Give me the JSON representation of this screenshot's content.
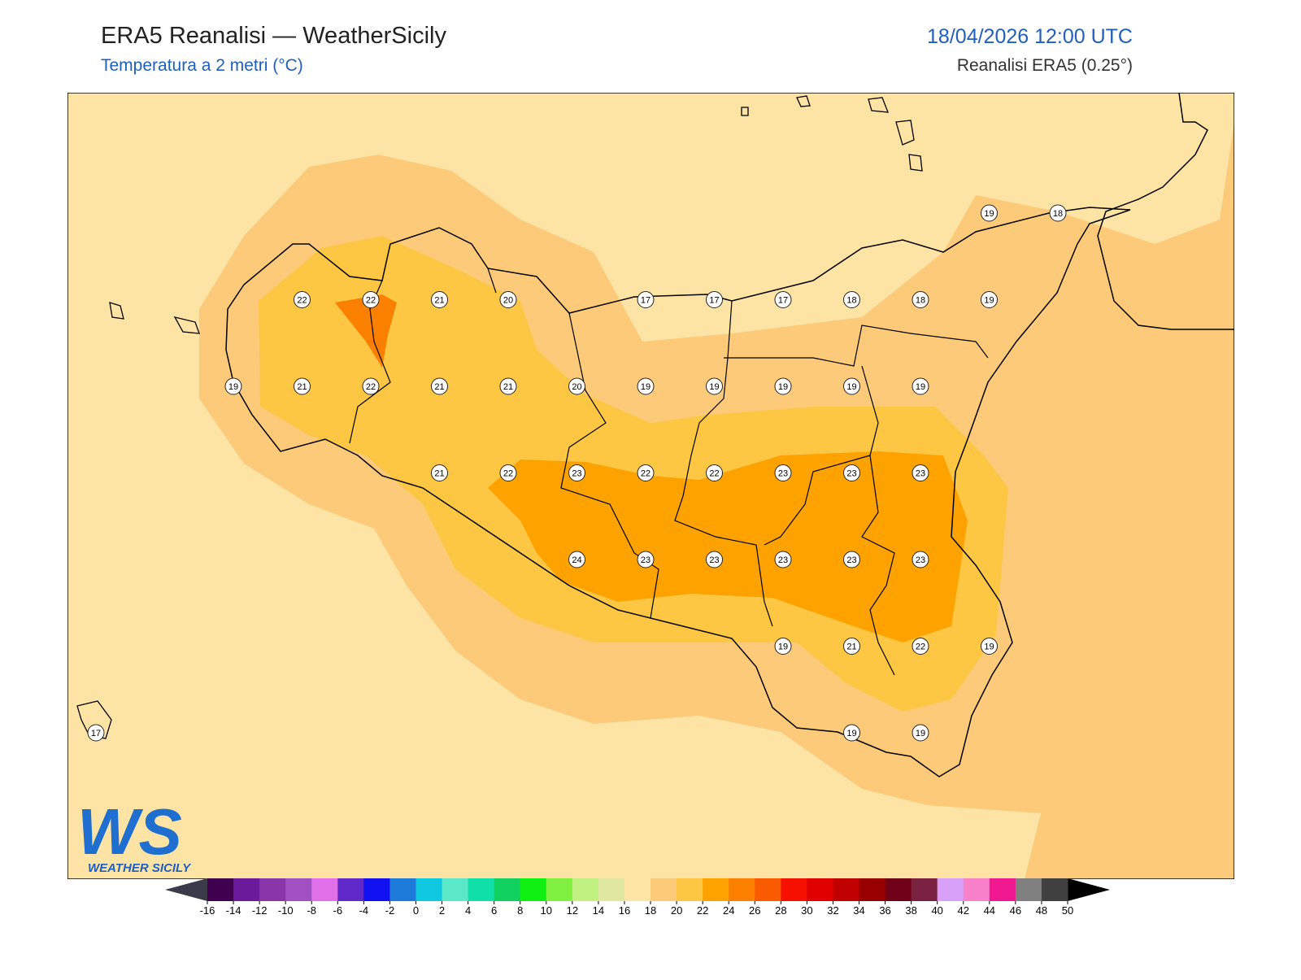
{
  "header": {
    "title": "ERA5 Reanalisi — WeatherSicily",
    "subtitle": "Temperatura a 2 metri (°C)",
    "datetime": "18/04/2026 12:00 UTC",
    "source": "Reanalisi ERA5 (0.25°)"
  },
  "logo": {
    "mark": "WS",
    "name": "WEATHER SICILY"
  },
  "points": [
    19,
    18,
    22,
    22,
    21,
    20,
    17,
    17,
    17,
    18,
    18,
    19,
    19,
    21,
    22,
    21,
    21,
    20,
    19,
    19,
    19,
    19,
    19,
    21,
    22,
    23,
    22,
    22,
    23,
    23,
    23,
    24,
    23,
    23,
    23,
    23,
    23,
    19,
    21,
    22,
    19,
    17,
    19,
    19
  ],
  "colorbar": {
    "ticks": [
      -16,
      -14,
      -12,
      -10,
      -8,
      -6,
      -4,
      -2,
      0,
      2,
      4,
      6,
      8,
      10,
      12,
      14,
      16,
      18,
      20,
      22,
      24,
      26,
      28,
      30,
      32,
      34,
      36,
      38,
      40,
      42,
      44,
      46,
      48,
      50
    ],
    "colors": [
      "#3f0050",
      "#6a1a9a",
      "#8a35a8",
      "#a050c0",
      "#e070e8",
      "#6028c8",
      "#1010f0",
      "#1e7ad8",
      "#10c8e0",
      "#5ae8c8",
      "#10e0a8",
      "#10d060",
      "#10f010",
      "#80f040",
      "#c0f080",
      "#e0e8a0",
      "#fee4a4",
      "#fdca7a",
      "#fdc744",
      "#fea200",
      "#fb8000",
      "#fa5a00",
      "#f51000",
      "#e00000",
      "#c00000",
      "#980000",
      "#700018",
      "#7a2040",
      "#d8a0f8",
      "#f880c8",
      "#f01890",
      "#808080",
      "#404040"
    ],
    "under": "#3a3a48",
    "over": "#000000"
  }
}
